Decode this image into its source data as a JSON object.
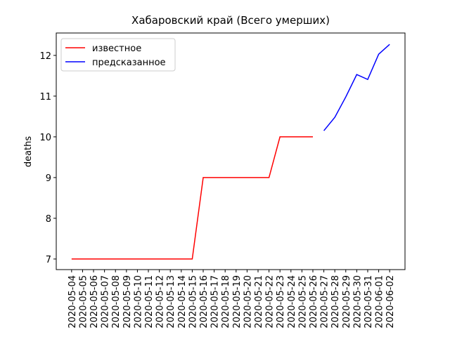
{
  "chart_data": {
    "type": "line",
    "title": "Хабаровский край (Всего умерших)",
    "y_label": "deaths",
    "x": [
      "2020-05-04",
      "2020-05-05",
      "2020-05-06",
      "2020-05-07",
      "2020-05-08",
      "2020-05-09",
      "2020-05-10",
      "2020-05-11",
      "2020-05-12",
      "2020-05-13",
      "2020-05-14",
      "2020-05-15",
      "2020-05-16",
      "2020-05-17",
      "2020-05-18",
      "2020-05-19",
      "2020-05-20",
      "2020-05-21",
      "2020-05-22",
      "2020-05-23",
      "2020-05-24",
      "2020-05-25",
      "2020-05-26",
      "2020-05-27",
      "2020-05-28",
      "2020-05-29",
      "2020-05-30",
      "2020-05-31",
      "2020-06-01",
      "2020-06-02"
    ],
    "series": [
      {
        "name": "известное",
        "color": "#ff0000",
        "values": [
          7,
          7,
          7,
          7,
          7,
          7,
          7,
          7,
          7,
          7,
          7,
          7,
          9,
          9,
          9,
          9,
          9,
          9,
          9,
          10,
          10,
          10,
          10,
          null,
          null,
          null,
          null,
          null,
          null,
          null
        ]
      },
      {
        "name": "предсказанное",
        "color": "#0000ff",
        "values": [
          null,
          null,
          null,
          null,
          null,
          null,
          null,
          null,
          null,
          null,
          null,
          null,
          null,
          null,
          null,
          null,
          null,
          null,
          null,
          null,
          null,
          null,
          null,
          10.15,
          10.48,
          10.98,
          11.53,
          11.41,
          12.03,
          12.27
        ]
      }
    ],
    "ylim": [
      6.74,
      12.55
    ],
    "yticks": [
      7,
      8,
      9,
      10,
      11,
      12
    ],
    "legend": "upper left"
  }
}
